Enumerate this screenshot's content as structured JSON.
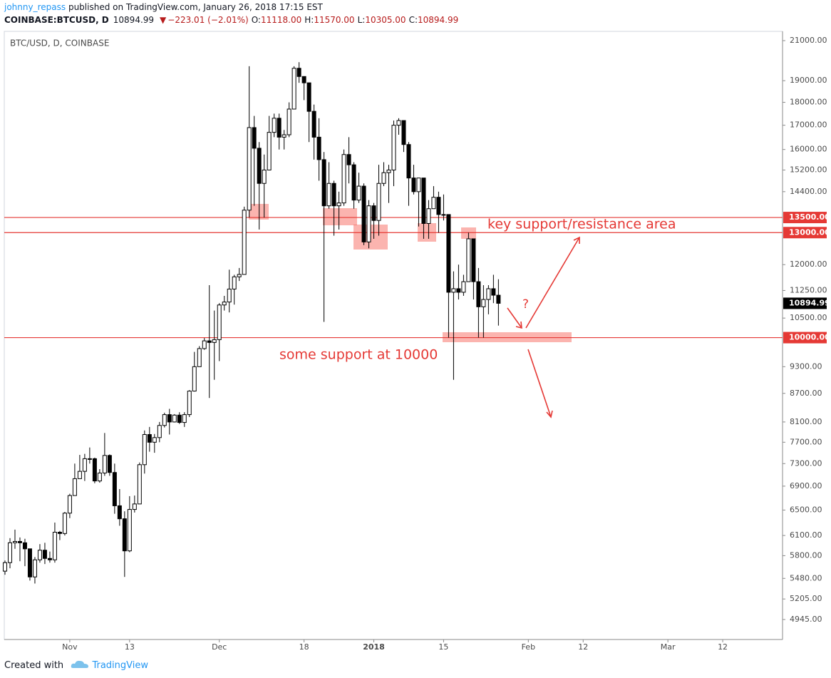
{
  "header": {
    "author": "johnny_repass",
    "published": "published on TradingView.com, January 26, 2018 17:15 EST",
    "quote": [
      {
        "text": "COINBASE:BTCUSD, D",
        "color": "#131722"
      },
      {
        "text": "10894.99",
        "color": "#131722"
      },
      {
        "text": "▼",
        "color": "#b71c1c"
      },
      {
        "text": "−223.01 (−2.01%)",
        "color": "#b71c1c"
      },
      {
        "text": "O:",
        "color": "#131722"
      },
      {
        "text": "11118.00",
        "color": "#b71c1c"
      },
      {
        "text": "H:",
        "color": "#131722"
      },
      {
        "text": "11570.00",
        "color": "#b71c1c"
      },
      {
        "text": "L:",
        "color": "#131722"
      },
      {
        "text": "10305.00",
        "color": "#b71c1c"
      },
      {
        "text": "C:",
        "color": "#131722"
      },
      {
        "text": "10894.99",
        "color": "#b71c1c"
      }
    ]
  },
  "chart_data": {
    "type": "candlestick",
    "title": "BTC/USD, D, COINBASE",
    "log_scale": true,
    "grid": false,
    "up_color": "#ffffff",
    "down_color": "#000000",
    "open": [
      5580,
      5700,
      5990,
      6010,
      5990,
      5900,
      5500,
      5740,
      5880,
      5760,
      5740,
      6150,
      6130,
      6450,
      6740,
      7030,
      7160,
      7390,
      7390,
      6990,
      7130,
      7450,
      7140,
      6570,
      6360,
      5870,
      6510,
      6600,
      7280,
      7850,
      7700,
      7790,
      8030,
      8250,
      8100,
      8240,
      8090,
      8250,
      8750,
      9300,
      9730,
      9920,
      9880,
      9950,
      10850,
      10930,
      11290,
      11640,
      11710,
      13750,
      16900,
      16050,
      14700,
      15200,
      16700,
      17300,
      16500,
      16600,
      17700,
      19600,
      19200,
      18900,
      17600,
      16500,
      15600,
      13900,
      14700,
      13900,
      14000,
      15800,
      15400,
      14100,
      14600,
      12700,
      13900,
      13400,
      14700,
      15100,
      15200,
      17000,
      17200,
      16200,
      14900,
      14400,
      14900,
      13300,
      13800,
      14200,
      13600,
      13600,
      11200,
      11300,
      11200,
      11500,
      12800,
      11500,
      10800,
      11000,
      11300,
      11118
    ],
    "high": [
      5730,
      6060,
      6190,
      6070,
      6050,
      5900,
      5780,
      5970,
      5990,
      5860,
      6300,
      6170,
      6470,
      6770,
      7300,
      7460,
      7480,
      7600,
      7410,
      7200,
      7880,
      7470,
      7300,
      6850,
      6480,
      6730,
      6740,
      7320,
      7930,
      8000,
      7860,
      8100,
      8290,
      8370,
      8260,
      8300,
      8300,
      8770,
      9650,
      9790,
      9990,
      11400,
      10700,
      10900,
      11100,
      11850,
      11700,
      11900,
      13870,
      19700,
      17400,
      16300,
      15800,
      17400,
      17500,
      17500,
      16800,
      18000,
      19700,
      19900,
      19200,
      18900,
      17900,
      17300,
      15900,
      15500,
      14800,
      14400,
      16000,
      16500,
      15500,
      15100,
      14700,
      14100,
      14000,
      15400,
      15500,
      15400,
      17200,
      17300,
      17200,
      16300,
      15400,
      14900,
      14900,
      14100,
      14600,
      14400,
      14300,
      13600,
      11800,
      12000,
      11700,
      13000,
      12800,
      11900,
      11400,
      11400,
      11700,
      11570
    ],
    "low": [
      5530,
      5620,
      5900,
      5720,
      5650,
      5450,
      5410,
      5700,
      5680,
      5700,
      5700,
      6030,
      6100,
      6370,
      6740,
      7030,
      6990,
      7300,
      6950,
      6960,
      7080,
      7080,
      6440,
      6250,
      5500,
      5850,
      6460,
      6600,
      7120,
      7520,
      7500,
      7700,
      7990,
      7850,
      8090,
      8060,
      8000,
      8200,
      8740,
      9300,
      9700,
      8600,
      9000,
      9430,
      10700,
      10650,
      10860,
      11520,
      11710,
      13500,
      13900,
      13100,
      13500,
      15200,
      16500,
      16000,
      16000,
      16500,
      17700,
      18900,
      18100,
      16300,
      15600,
      14800,
      10400,
      13800,
      12900,
      13100,
      13900,
      14700,
      13800,
      14000,
      12600,
      12500,
      12800,
      12900,
      14600,
      14000,
      14600,
      16600,
      15900,
      13900,
      14300,
      13200,
      12800,
      12800,
      13800,
      13000,
      13400,
      10000,
      9000,
      11000,
      11100,
      11500,
      11000,
      10000,
      10000,
      10600,
      10900,
      10305
    ],
    "close": [
      5700,
      5990,
      6010,
      5990,
      5900,
      5500,
      5740,
      5880,
      5760,
      5740,
      6150,
      6130,
      6450,
      6740,
      7030,
      7160,
      7390,
      7390,
      6990,
      7130,
      7450,
      7140,
      6570,
      6360,
      5870,
      6510,
      6600,
      7280,
      7850,
      7700,
      7790,
      8030,
      8250,
      8100,
      8240,
      8090,
      8250,
      8750,
      9300,
      9730,
      9920,
      9880,
      9950,
      10850,
      10930,
      11290,
      11640,
      11710,
      13750,
      16900,
      16050,
      14700,
      15200,
      16700,
      17300,
      16500,
      16600,
      17700,
      19600,
      19200,
      18900,
      17600,
      16500,
      15600,
      13900,
      14700,
      13900,
      14000,
      15800,
      15400,
      14100,
      14600,
      12700,
      13900,
      13400,
      14700,
      15100,
      15200,
      17000,
      17200,
      16200,
      14900,
      14400,
      14900,
      13300,
      13800,
      14200,
      13600,
      13600,
      11200,
      11300,
      11200,
      11500,
      12800,
      11500,
      10800,
      11000,
      11300,
      11118,
      10894.99
    ],
    "xlim": [
      -1,
      156
    ],
    "xticks": [
      {
        "value": 13,
        "label": "Nov"
      },
      {
        "value": 25,
        "label": "13"
      },
      {
        "value": 43,
        "label": "Dec"
      },
      {
        "value": 60,
        "label": "18"
      },
      {
        "value": 74,
        "label": "2018"
      },
      {
        "value": 88,
        "label": "15"
      },
      {
        "value": 105,
        "label": "Feb"
      },
      {
        "value": 116,
        "label": "12"
      },
      {
        "value": 133,
        "label": "Mar"
      },
      {
        "value": 144,
        "label": "12"
      }
    ],
    "ylim": [
      4704,
      21492
    ],
    "yticks": [
      {
        "value": 21000,
        "label": "21000.00"
      },
      {
        "value": 19000,
        "label": "19000.00"
      },
      {
        "value": 18000,
        "label": "18000.00"
      },
      {
        "value": 17000,
        "label": "17000.00"
      },
      {
        "value": 16000,
        "label": "16000.00"
      },
      {
        "value": 15200,
        "label": "15200.00"
      },
      {
        "value": 14400,
        "label": "14400.00"
      },
      {
        "value": 12000,
        "label": "12000.00"
      },
      {
        "value": 11250,
        "label": "11250.00"
      },
      {
        "value": 10500,
        "label": "10500.00"
      },
      {
        "value": 9300,
        "label": "9300.00"
      },
      {
        "value": 8700,
        "label": "8700.00"
      },
      {
        "value": 8100,
        "label": "8100.00"
      },
      {
        "value": 7700,
        "label": "7700.00"
      },
      {
        "value": 7300,
        "label": "7300.00"
      },
      {
        "value": 6900,
        "label": "6900.00"
      },
      {
        "value": 6500,
        "label": "6500.00"
      },
      {
        "value": 6100,
        "label": "6100.00"
      },
      {
        "value": 5800,
        "label": "5800.00"
      },
      {
        "value": 5480,
        "label": "5480.00"
      },
      {
        "value": 5205,
        "label": "5205.00"
      },
      {
        "value": 4945,
        "label": "4945.00"
      }
    ],
    "horizontal_lines": [
      {
        "value": 13500,
        "label": "13500.00",
        "color": "#e53935"
      },
      {
        "value": 13000,
        "label": "13000.00",
        "color": "#e53935"
      },
      {
        "value": 10000,
        "label": "10000.00",
        "color": "#e53935"
      }
    ],
    "last_price": {
      "value": 10894.99,
      "label": "10894.99"
    },
    "annotations": [
      "key support/resistance area",
      "some support at 10000",
      "?"
    ]
  },
  "footer": {
    "created": "Created with",
    "brand": "TradingView"
  }
}
